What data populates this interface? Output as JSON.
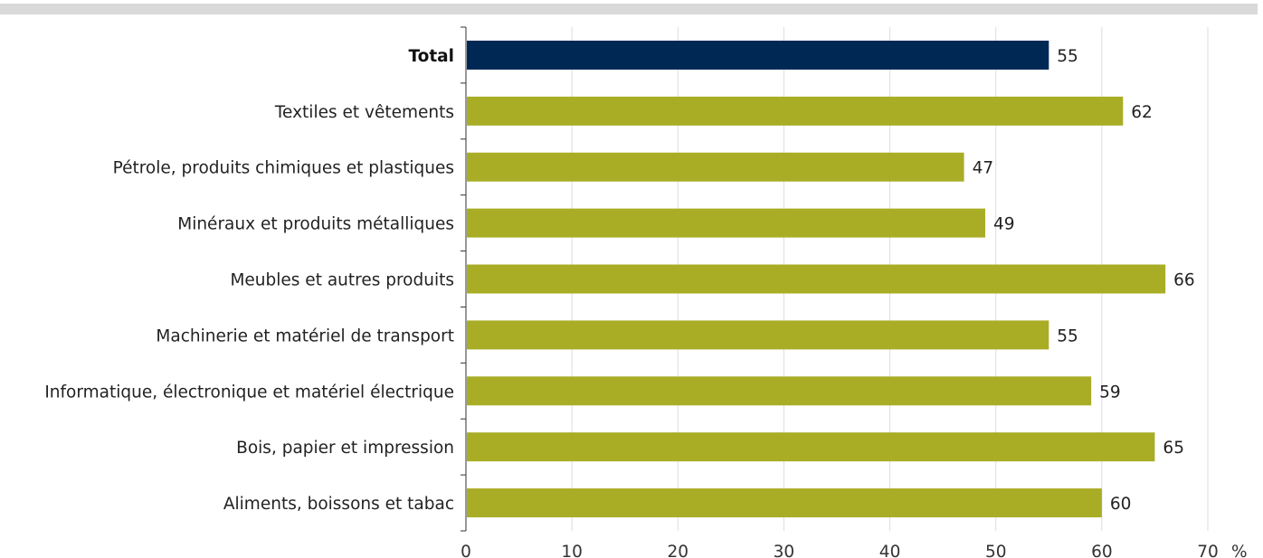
{
  "chart_data": {
    "type": "bar",
    "orientation": "horizontal",
    "categories": [
      "Total",
      "Textiles et vêtements",
      "Pétrole, produits chimiques et plastiques",
      "Minéraux et produits métalliques",
      "Meubles et autres produits",
      "Machinerie et matériel de transport",
      "Informatique, électronique et matériel électrique",
      "Bois, papier et impression",
      "Aliments, boissons et tabac"
    ],
    "values": [
      55,
      62,
      47,
      49,
      66,
      55,
      59,
      65,
      60
    ],
    "highlight_category": "Total",
    "x_unit": "%",
    "xlim": [
      0,
      70
    ],
    "x_ticks": [
      0,
      10,
      20,
      30,
      40,
      50,
      60,
      70
    ],
    "grid": "vertical",
    "colors": {
      "highlight": "#002855",
      "default": "#a9ad26",
      "grid": "#dddddd",
      "axis": "#333333",
      "top_band": "#d9d9d9"
    }
  }
}
